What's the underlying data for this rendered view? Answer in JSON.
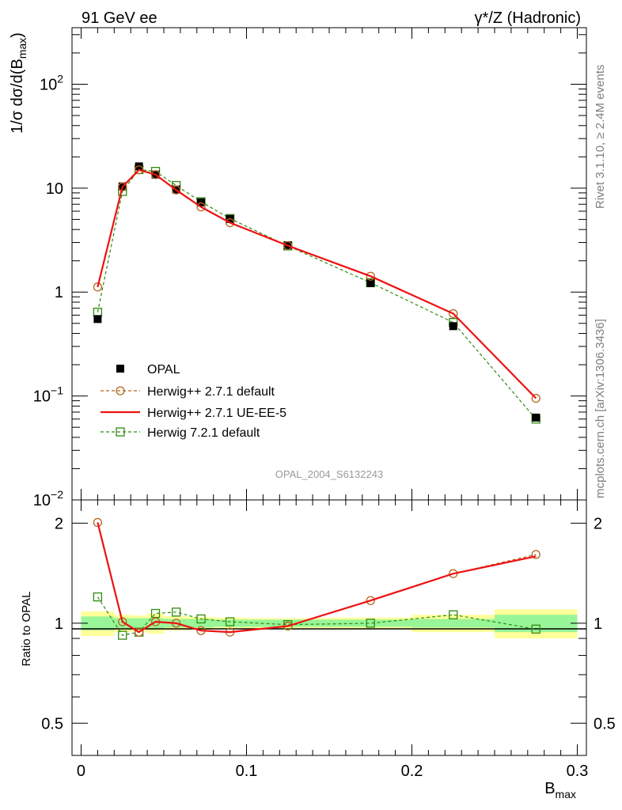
{
  "header": {
    "left": "91 GeV ee",
    "right": "γ*/Z (Hadronic)"
  },
  "side_labels": {
    "rivet": "Rivet 3.1.10, ≥ 2.4M events",
    "mcplots": "mcplots.cern.ch [arXiv:1306.3436]"
  },
  "watermark": "OPAL_2004_S6132243",
  "colors": {
    "data": "#000000",
    "h271_default": "#b5651d",
    "h271_ueee5": "#ee1111",
    "h721_default": "#2e8b10",
    "band_inner": "#98f598",
    "band_outer": "#ffff99"
  },
  "chart_data": [
    {
      "type": "line",
      "panel": "main",
      "ylabel_main": "1/σ dσ/d(B",
      "ylabel_sub": "max",
      "ylabel_close": ")",
      "yscale": "log",
      "ylim": [
        0.01,
        350
      ],
      "xlim": [
        -0.0055,
        0.3055
      ],
      "y_ticks": [
        {
          "value": 0.01,
          "base": "10",
          "exp": "−2"
        },
        {
          "value": 0.1,
          "base": "10",
          "exp": "−1"
        },
        {
          "value": 1,
          "base": "1",
          "exp": ""
        },
        {
          "value": 10,
          "base": "10",
          "exp": ""
        },
        {
          "value": 100,
          "base": "10",
          "exp": "2"
        }
      ],
      "x": [
        0.01,
        0.025,
        0.035,
        0.045,
        0.0575,
        0.0725,
        0.09,
        0.125,
        0.175,
        0.225,
        0.275
      ],
      "series": [
        {
          "name": "OPAL",
          "key": "data",
          "style": "marker-square-filled",
          "values": [
            0.55,
            10.4,
            16.2,
            13.5,
            9.7,
            7.3,
            5.05,
            2.82,
            1.22,
            0.47,
            0.062
          ]
        },
        {
          "name": "Herwig++ 2.7.1 default",
          "key": "h271_default",
          "style": "dashed-circle",
          "values": [
            1.12,
            10.3,
            15.0,
            13.5,
            9.6,
            6.6,
            4.65,
            2.8,
            1.42,
            0.62,
            0.095
          ]
        },
        {
          "name": "Herwig++ 2.7.1 UE-EE-5",
          "key": "h271_ueee5",
          "style": "solid",
          "values": [
            1.12,
            10.3,
            15.0,
            13.5,
            9.6,
            6.6,
            4.65,
            2.8,
            1.42,
            0.62,
            0.095
          ]
        },
        {
          "name": "Herwig 7.2.1 default",
          "key": "h721_default",
          "style": "dashed-square-open",
          "values": [
            0.64,
            9.3,
            15.1,
            14.5,
            10.6,
            7.4,
            5.1,
            2.78,
            1.23,
            0.51,
            0.06
          ]
        }
      ],
      "legend_position": "lower-left"
    },
    {
      "type": "line",
      "panel": "ratio",
      "ylabel": "Ratio to OPAL",
      "yscale": "log",
      "ylim": [
        0.4,
        2.35
      ],
      "xlim": [
        -0.0055,
        0.3055
      ],
      "y_ticks": [
        {
          "value": 0.5,
          "label": "0.5"
        },
        {
          "value": 1,
          "label": "1"
        },
        {
          "value": 2,
          "label": "2"
        }
      ],
      "x_ticks": [
        {
          "value": 0,
          "label": "0"
        },
        {
          "value": 0.1,
          "label": "0.1"
        },
        {
          "value": 0.2,
          "label": "0.2"
        },
        {
          "value": 0.3,
          "label": "0.3"
        }
      ],
      "xlabel_main": "B",
      "xlabel_sub": "max",
      "bin_edges": [
        0.0,
        0.02,
        0.03,
        0.04,
        0.05,
        0.065,
        0.08,
        0.1,
        0.15,
        0.2,
        0.25,
        0.3
      ],
      "band_inner": [
        0.048,
        0.035,
        0.035,
        0.035,
        0.03,
        0.03,
        0.025,
        0.025,
        0.025,
        0.03,
        0.06
      ],
      "band_outer": [
        0.085,
        0.06,
        0.055,
        0.07,
        0.05,
        0.045,
        0.04,
        0.035,
        0.04,
        0.06,
        0.1
      ],
      "x": [
        0.01,
        0.025,
        0.035,
        0.045,
        0.0575,
        0.0725,
        0.09,
        0.125,
        0.175,
        0.225,
        0.275
      ],
      "series": [
        {
          "name": "Herwig++ 2.7.1 default",
          "key": "h271_default",
          "style": "dashed-circle",
          "values": [
            2.01,
            1.01,
            0.94,
            1.01,
            1.0,
            0.95,
            0.94,
            0.98,
            1.17,
            1.41,
            1.61
          ]
        },
        {
          "name": "Herwig++ 2.7.1 UE-EE-5",
          "key": "h271_ueee5",
          "style": "solid",
          "values": [
            2.01,
            1.01,
            0.94,
            1.01,
            1.0,
            0.95,
            0.94,
            0.98,
            1.17,
            1.41,
            1.59
          ]
        },
        {
          "name": "Herwig 7.2.1 default",
          "key": "h721_default",
          "style": "dashed-square-open",
          "values": [
            1.2,
            0.92,
            0.94,
            1.07,
            1.08,
            1.03,
            1.01,
            0.99,
            1.0,
            1.06,
            0.96
          ]
        }
      ]
    }
  ]
}
